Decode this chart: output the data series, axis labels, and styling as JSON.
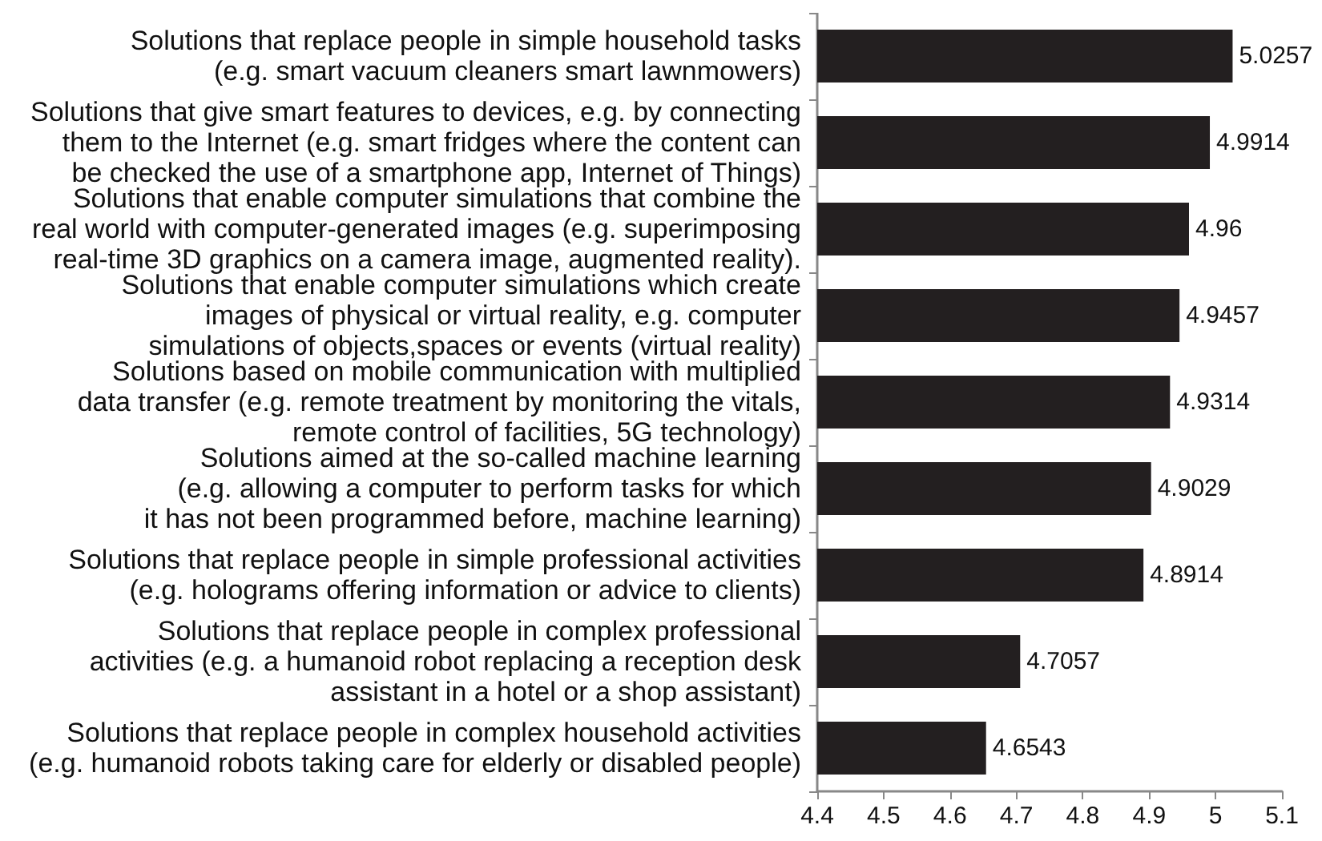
{
  "chart_data": {
    "type": "bar",
    "orientation": "horizontal",
    "categories": [
      "Solutions that replace people in simple household tasks\n(e.g. smart vacuum cleaners smart lawnmowers)",
      "Solutions that give smart features to devices, e.g. by connecting\nthem to the Internet (e.g. smart fridges where the content can\nbe checked the use of a smartphone app, Internet of Things)",
      "Solutions that enable computer simulations that combine the\nreal world with computer-generated images (e.g. superimposing\nreal-time 3D graphics on a camera image, augmented reality).",
      "Solutions that enable computer simulations which create\nimages of physical or virtual reality, e.g. computer\nsimulations of objects,spaces or events (virtual reality)",
      "Solutions based on mobile communication with multiplied\ndata transfer (e.g. remote treatment by monitoring the vitals,\nremote control of facilities, 5G technology)",
      "Solutions aimed at the so-called machine learning\n(e.g. allowing a computer to perform tasks for which\nit has not been programmed before, machine learning)",
      "Solutions that replace people in simple professional activities\n(e.g. holograms offering information or advice to clients)",
      "Solutions that replace people in complex professional\nactivities (e.g. a humanoid robot replacing a reception desk\nassistant in a hotel or a shop assistant)",
      "Solutions that replace people in complex household activities\n(e.g. humanoid robots taking care for elderly or disabled people)"
    ],
    "values": [
      5.0257,
      4.9914,
      4.96,
      4.9457,
      4.9314,
      4.9029,
      4.8914,
      4.7057,
      4.6543
    ],
    "color": "#231f20",
    "xlim": [
      4.4,
      5.1
    ],
    "xticks": [
      4.4,
      4.5,
      4.6,
      4.7,
      4.8,
      4.9,
      5,
      5.1
    ],
    "data_labels": true,
    "grid": false
  }
}
